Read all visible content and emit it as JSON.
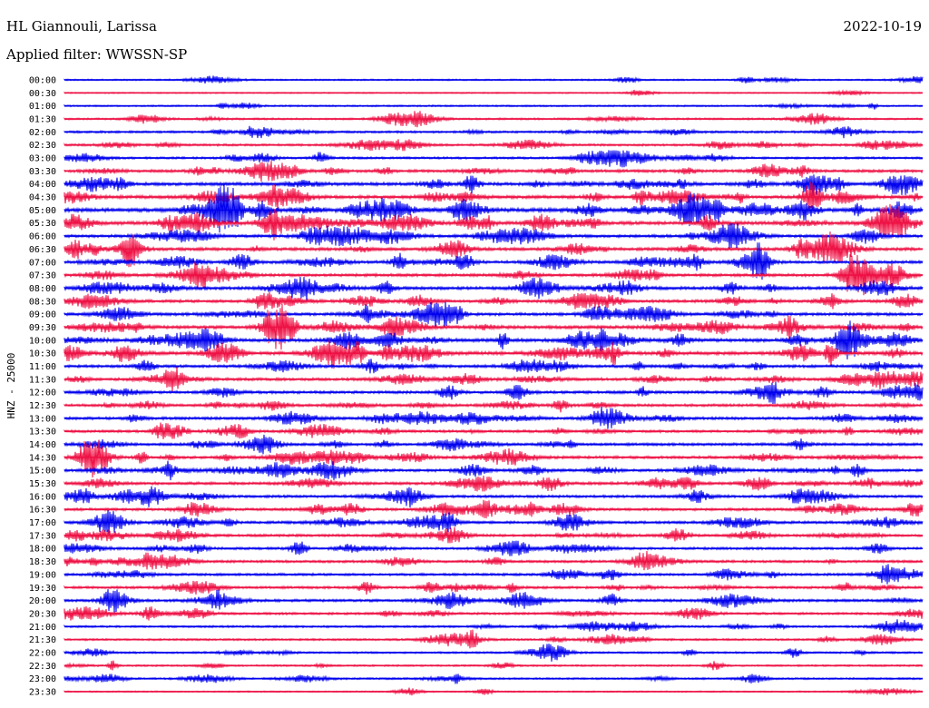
{
  "header": {
    "station": "HL Giannouli, Larissa",
    "filter": "Applied filter: WWSSN-SP",
    "date": "2022-10-19"
  },
  "chart_data": {
    "type": "line",
    "title": "HL Giannouli, Larissa",
    "ylabel": "HNZ - 25000",
    "row_labels": [
      "00:00",
      "00:30",
      "01:00",
      "01:30",
      "02:00",
      "02:30",
      "03:00",
      "03:30",
      "04:00",
      "04:30",
      "05:00",
      "05:30",
      "06:00",
      "06:30",
      "07:00",
      "07:30",
      "08:00",
      "08:30",
      "09:00",
      "09:30",
      "10:00",
      "10:30",
      "11:00",
      "11:30",
      "12:00",
      "12:30",
      "13:00",
      "13:30",
      "14:00",
      "14:30",
      "15:00",
      "15:30",
      "16:00",
      "16:30",
      "17:00",
      "17:30",
      "18:00",
      "18:30",
      "19:00",
      "19:30",
      "20:00",
      "20:30",
      "21:00",
      "21:30",
      "22:00",
      "22:30",
      "23:00",
      "23:30"
    ],
    "series_colors": [
      "#0000ee",
      "#ee1144"
    ],
    "row_activity": [
      0.15,
      0.05,
      0.15,
      0.25,
      0.35,
      0.35,
      0.35,
      0.55,
      0.7,
      0.7,
      0.9,
      0.8,
      0.6,
      0.65,
      0.6,
      0.6,
      0.65,
      0.6,
      0.6,
      0.7,
      0.75,
      0.75,
      0.55,
      0.55,
      0.55,
      0.5,
      0.55,
      0.5,
      0.5,
      0.55,
      0.55,
      0.55,
      0.5,
      0.5,
      0.5,
      0.45,
      0.45,
      0.45,
      0.45,
      0.45,
      0.5,
      0.4,
      0.3,
      0.3,
      0.25,
      0.2,
      0.25,
      0.1
    ],
    "legend": "none",
    "grid": false
  }
}
